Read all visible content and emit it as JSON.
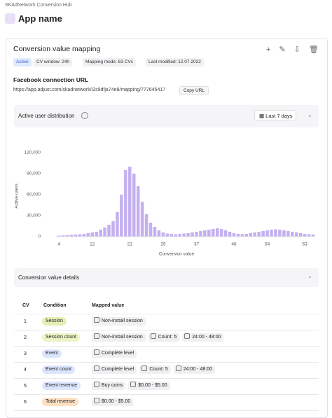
{
  "header": {
    "app_title": "SKAdNetwork Conversion Hub",
    "app_name": "App name"
  },
  "mapping": {
    "title": "Conversion value mapping",
    "status": "Active",
    "tags": [
      "CV window: 24h",
      "Mapping mode: 63 CVs",
      "Last modified: 12.07.2022"
    ],
    "url_label": "Facebook connection URL",
    "url": "https://app.adjust.com/skadnetwork/i2s9dfja74e8/mapping/777645417",
    "copy_button": "Copy URL"
  },
  "distribution": {
    "title": "Active user distribution",
    "range": "Last 7 days"
  },
  "chart_data": {
    "type": "bar",
    "color": "#c4b0f0",
    "grid": false,
    "xlabel": "Conversion value",
    "ylabel": "Active users",
    "x": [
      4,
      5,
      6,
      7,
      8,
      9,
      10,
      11,
      12,
      13,
      14,
      15,
      16,
      17,
      18,
      19,
      20,
      21,
      22,
      23,
      24,
      25,
      26,
      27,
      28,
      29,
      30,
      31,
      32,
      33,
      34,
      35,
      36,
      37,
      38,
      39,
      40,
      41,
      42,
      43,
      44,
      45,
      46,
      47,
      48,
      49,
      50,
      51,
      52,
      53,
      54,
      55,
      56,
      57,
      58,
      59,
      60,
      61,
      62,
      63,
      64,
      65
    ],
    "values": [
      1500,
      1800,
      2000,
      2500,
      3000,
      3500,
      4000,
      5000,
      6000,
      7000,
      10000,
      13000,
      17000,
      22000,
      35000,
      60000,
      95000,
      100000,
      90000,
      72000,
      50000,
      32000,
      20000,
      14000,
      9000,
      6000,
      4500,
      4000,
      3500,
      4000,
      4500,
      5000,
      6000,
      7000,
      8000,
      9000,
      10000,
      11000,
      12000,
      11000,
      9000,
      7000,
      5000,
      4000,
      3500,
      4000,
      5000,
      6000,
      7000,
      8000,
      9000,
      10000,
      10500,
      10000,
      9000,
      8000,
      7000,
      6000,
      5000,
      4000,
      3500,
      3000
    ],
    "xlim": [
      3.3,
      65.5
    ],
    "xticks": [
      4,
      12,
      21,
      29,
      37,
      46,
      54,
      63
    ],
    "ylim": [
      0,
      120000
    ],
    "yticks": [
      0,
      {
        "value": 30000,
        "label": "30,000"
      },
      {
        "value": 60000,
        "label": "60,000"
      },
      {
        "value": 90000,
        "label": "90,000"
      },
      {
        "value": 120000,
        "label": "120,000"
      }
    ]
  },
  "details": {
    "title": "Conversion value details",
    "columns": [
      "CV",
      "Condition",
      "Mapped value"
    ],
    "rows": [
      {
        "cv": 1,
        "condition": "Session",
        "condition_color": "#e4efb6",
        "mapped": [
          "Non-install session"
        ]
      },
      {
        "cv": 2,
        "condition": "Session count",
        "condition_color": "#eef3c6",
        "mapped": [
          "Non-install session",
          "Count: 5",
          "24:00 - 48:00"
        ]
      },
      {
        "cv": 3,
        "condition": "Event",
        "condition_color": "#dde6ff",
        "mapped": [
          "Complete level"
        ]
      },
      {
        "cv": 4,
        "condition": "Event count",
        "condition_color": "#dde6ff",
        "mapped": [
          "Complete level",
          "Count: 5",
          "24:00 - 48:00"
        ]
      },
      {
        "cv": 5,
        "condition": "Event revenue",
        "condition_color": "#dde6ff",
        "mapped": [
          "Buy coins",
          "$0.00 - $5.00"
        ]
      },
      {
        "cv": 6,
        "condition": "Total revenue",
        "condition_color": "#fde0c2",
        "mapped": [
          "$0.00 - $5.00"
        ]
      }
    ]
  }
}
